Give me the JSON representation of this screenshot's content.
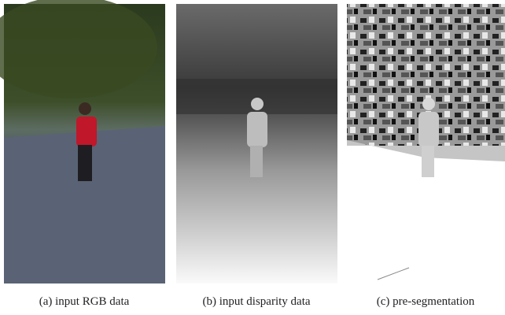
{
  "figure": {
    "panels": [
      {
        "caption": "(a) input RGB data"
      },
      {
        "caption": "(b) input disparity data"
      },
      {
        "caption": "(c) pre-segmentation"
      }
    ]
  }
}
